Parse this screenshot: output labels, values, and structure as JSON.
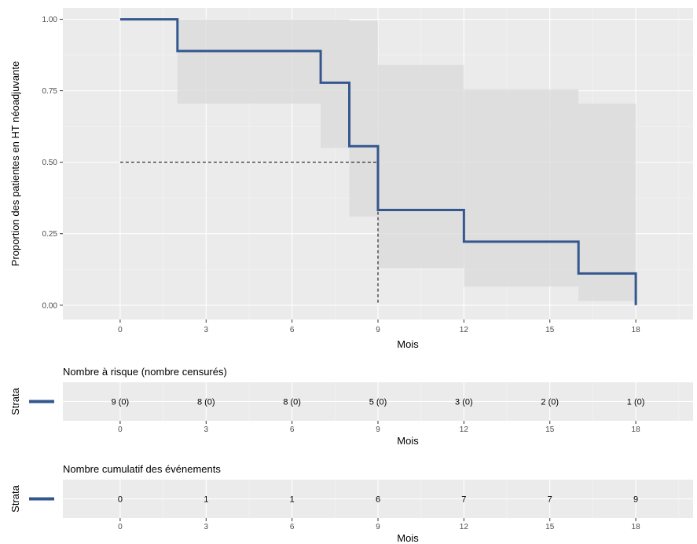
{
  "chart_data": {
    "type": "line",
    "subtype": "kaplan-meier step curve with confidence band",
    "ylabel": "Proportion des patientes en HT néoadjuvante",
    "xlabel": "Mois",
    "xlim": [
      -2,
      20
    ],
    "ylim": [
      -0.05,
      1.04
    ],
    "x_ticks": [
      0,
      3,
      6,
      9,
      12,
      15,
      18
    ],
    "y_ticks": [
      0.0,
      0.25,
      0.5,
      0.75,
      1.0
    ],
    "y_tick_labels": [
      "0.00",
      "0.25",
      "0.50",
      "0.75",
      "1.00"
    ],
    "grid": true,
    "line_color": "#34578f",
    "band_color": "#d9d9d9",
    "panel_color": "#ebebeb",
    "series": [
      {
        "steps": [
          {
            "x0": 0,
            "x1": 2,
            "y": 1.0,
            "lower": 1.0,
            "upper": 1.0
          },
          {
            "x0": 2,
            "x1": 7,
            "y": 0.889,
            "lower": 0.705,
            "upper": 1.0
          },
          {
            "x0": 7,
            "x1": 8,
            "y": 0.778,
            "lower": 0.55,
            "upper": 1.0
          },
          {
            "x0": 8,
            "x1": 9,
            "y": 0.556,
            "lower": 0.31,
            "upper": 0.995
          },
          {
            "x0": 9,
            "x1": 12,
            "y": 0.333,
            "lower": 0.13,
            "upper": 0.84
          },
          {
            "x0": 12,
            "x1": 16,
            "y": 0.222,
            "lower": 0.065,
            "upper": 0.755
          },
          {
            "x0": 16,
            "x1": 18,
            "y": 0.111,
            "lower": 0.015,
            "upper": 0.705
          }
        ],
        "end": {
          "x": 18,
          "y": 0.0
        }
      }
    ],
    "median": {
      "x": 9,
      "y": 0.5
    }
  },
  "risk_table": {
    "title": "Nombre à risque (nombre censurés)",
    "strata_label": "Strata",
    "xlabel": "Mois",
    "times": [
      0,
      3,
      6,
      9,
      12,
      15,
      18
    ],
    "values": [
      "9 (0)",
      "8 (0)",
      "8 (0)",
      "5 (0)",
      "3 (0)",
      "2 (0)",
      "1 (0)"
    ]
  },
  "events_table": {
    "title": "Nombre cumulatif des événements",
    "strata_label": "Strata",
    "xlabel": "Mois",
    "times": [
      0,
      3,
      6,
      9,
      12,
      15,
      18
    ],
    "values": [
      "0",
      "1",
      "1",
      "6",
      "7",
      "7",
      "9"
    ]
  }
}
